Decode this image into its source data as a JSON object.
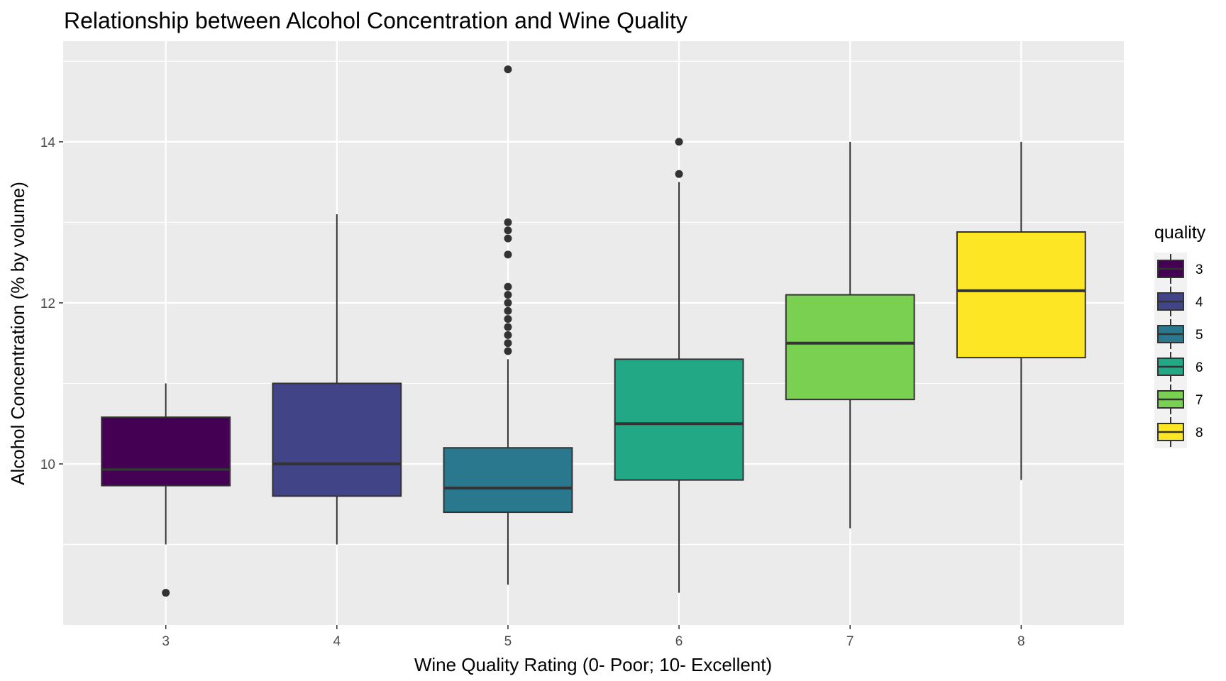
{
  "chart_data": {
    "type": "boxplot",
    "title": "Relationship between Alcohol Concentration and Wine Quality",
    "xlabel": "Wine Quality Rating (0- Poor; 10- Excellent)",
    "ylabel": "Alcohol Concentration (% by volume)",
    "categories": [
      "3",
      "4",
      "5",
      "6",
      "7",
      "8"
    ],
    "ylim": [
      8.0,
      15.25
    ],
    "y_ticks": [
      10,
      12,
      14
    ],
    "y_minor_gridlines": [
      9,
      11,
      13,
      15
    ],
    "grid": true,
    "panel_background": "#EBEBEB",
    "legend": {
      "title": "quality",
      "position": "right",
      "entries": [
        "3",
        "4",
        "5",
        "6",
        "7",
        "8"
      ]
    },
    "series": [
      {
        "category": "3",
        "color": "#440154",
        "whisker_low": 9.0,
        "q1": 9.73,
        "median": 9.93,
        "q3": 10.58,
        "whisker_high": 11.0,
        "outliers": [
          8.4
        ]
      },
      {
        "category": "4",
        "color": "#414487",
        "whisker_low": 9.0,
        "q1": 9.6,
        "median": 10.0,
        "q3": 11.0,
        "whisker_high": 13.1,
        "outliers": []
      },
      {
        "category": "5",
        "color": "#2A788E",
        "whisker_low": 8.5,
        "q1": 9.4,
        "median": 9.7,
        "q3": 10.2,
        "whisker_high": 11.3,
        "outliers": [
          11.4,
          11.5,
          11.6,
          11.7,
          11.8,
          11.9,
          12.0,
          12.1,
          12.2,
          12.6,
          12.8,
          12.9,
          13.0,
          14.9
        ]
      },
      {
        "category": "6",
        "color": "#22A884",
        "whisker_low": 8.4,
        "q1": 9.8,
        "median": 10.5,
        "q3": 11.3,
        "whisker_high": 13.5,
        "outliers": [
          13.6,
          14.0
        ]
      },
      {
        "category": "7",
        "color": "#7AD151",
        "whisker_low": 9.2,
        "q1": 10.8,
        "median": 11.5,
        "q3": 12.1,
        "whisker_high": 14.0,
        "outliers": []
      },
      {
        "category": "8",
        "color": "#FDE725",
        "whisker_low": 9.8,
        "q1": 11.32,
        "median": 12.15,
        "q3": 12.88,
        "whisker_high": 14.0,
        "outliers": []
      }
    ]
  }
}
